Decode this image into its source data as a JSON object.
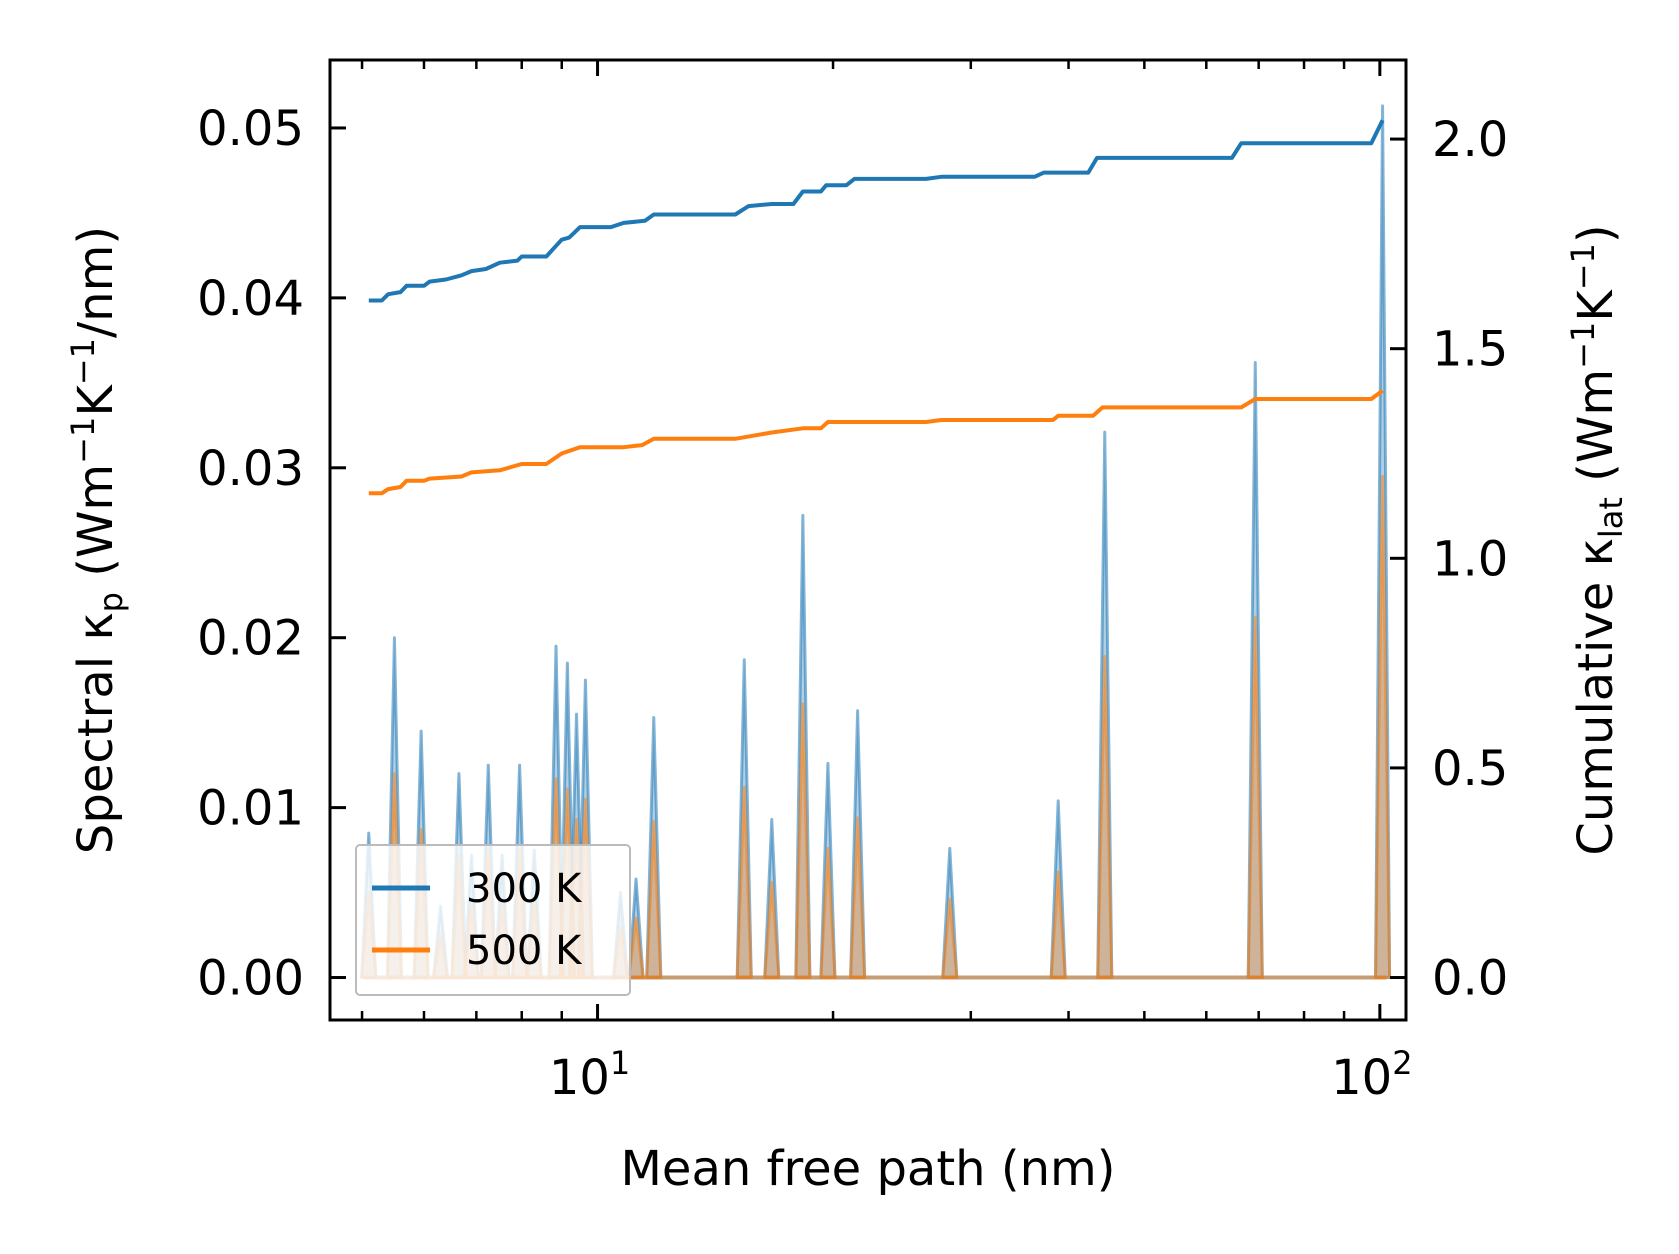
{
  "chart_data": {
    "type": "line",
    "title": "",
    "xlabel": "Mean free path (nm)",
    "ylabel_left": {
      "main": "Spectral κ",
      "sub": "p",
      "units_open": " (Wm",
      "sup1": "−1",
      "mid": "K",
      "sup2": "−1",
      "tail": "/nm)"
    },
    "ylabel_right": {
      "main": "Cumulative κ",
      "sub": "lat",
      "units_open": " (Wm",
      "sup1": "−1",
      "mid": "K",
      "sup2": "−1",
      "tail": ")"
    },
    "xscale": "log",
    "xlim": [
      4.55,
      108
    ],
    "ylim_left": [
      -0.0025,
      0.054
    ],
    "ylim_right": [
      -0.1013,
      2.1886
    ],
    "xticks_major": [
      {
        "value": 10,
        "base": "10",
        "exp": "1"
      },
      {
        "value": 100,
        "base": "10",
        "exp": "2"
      }
    ],
    "yticks_left": [
      "0.00",
      "0.01",
      "0.02",
      "0.03",
      "0.04",
      "0.05"
    ],
    "yticks_right": [
      "0.0",
      "0.5",
      "1.0",
      "1.5",
      "2.0"
    ],
    "legend": {
      "position": "lower-left",
      "entries": [
        "300 K",
        "500 K"
      ]
    },
    "colors": {
      "300 K": "#1f77b4",
      "500 K": "#ff7f0e"
    },
    "spectral_series": [
      {
        "name": "300 K",
        "peaks": [
          [
            5.1,
            0.0085
          ],
          [
            5.5,
            0.02
          ],
          [
            5.95,
            0.0145
          ],
          [
            6.3,
            0.0042
          ],
          [
            6.65,
            0.012
          ],
          [
            6.9,
            0.0072
          ],
          [
            7.25,
            0.0125
          ],
          [
            7.55,
            0.0072
          ],
          [
            7.95,
            0.0125
          ],
          [
            8.3,
            0.0075
          ],
          [
            8.85,
            0.0195
          ],
          [
            9.15,
            0.0185
          ],
          [
            9.4,
            0.0155
          ],
          [
            9.65,
            0.0175
          ],
          [
            10.7,
            0.005
          ],
          [
            11.2,
            0.0058
          ],
          [
            11.8,
            0.0153
          ],
          [
            15.4,
            0.0187
          ],
          [
            16.7,
            0.0093
          ],
          [
            18.3,
            0.0272
          ],
          [
            19.7,
            0.0126
          ],
          [
            21.5,
            0.0157
          ],
          [
            28.2,
            0.0076
          ],
          [
            38.8,
            0.0104
          ],
          [
            44.5,
            0.0321
          ],
          [
            69.3,
            0.0362
          ],
          [
            100.8,
            0.0513
          ]
        ]
      },
      {
        "name": "500 K",
        "peaks": [
          [
            5.1,
            0.005
          ],
          [
            5.5,
            0.012
          ],
          [
            5.95,
            0.0087
          ],
          [
            6.3,
            0.0025
          ],
          [
            6.65,
            0.0072
          ],
          [
            6.9,
            0.0043
          ],
          [
            7.25,
            0.0075
          ],
          [
            7.55,
            0.0043
          ],
          [
            7.95,
            0.0075
          ],
          [
            8.3,
            0.0045
          ],
          [
            8.85,
            0.0117
          ],
          [
            9.15,
            0.0111
          ],
          [
            9.4,
            0.0093
          ],
          [
            9.65,
            0.0105
          ],
          [
            10.7,
            0.003
          ],
          [
            11.2,
            0.0035
          ],
          [
            11.8,
            0.0092
          ],
          [
            15.4,
            0.0112
          ],
          [
            16.7,
            0.0056
          ],
          [
            18.3,
            0.0161
          ],
          [
            19.7,
            0.0076
          ],
          [
            21.5,
            0.0094
          ],
          [
            28.2,
            0.0046
          ],
          [
            38.8,
            0.0062
          ],
          [
            44.5,
            0.0189
          ],
          [
            69.3,
            0.0212
          ],
          [
            100.8,
            0.0295
          ]
        ]
      }
    ],
    "cumulative_series": [
      {
        "name": "300 K",
        "points": [
          [
            5.1,
            1.615
          ],
          [
            5.3,
            1.615
          ],
          [
            5.4,
            1.63
          ],
          [
            5.6,
            1.635
          ],
          [
            5.7,
            1.65
          ],
          [
            6.0,
            1.65
          ],
          [
            6.1,
            1.66
          ],
          [
            6.4,
            1.665
          ],
          [
            6.7,
            1.675
          ],
          [
            6.9,
            1.685
          ],
          [
            7.2,
            1.69
          ],
          [
            7.5,
            1.705
          ],
          [
            7.9,
            1.71
          ],
          [
            8.0,
            1.72
          ],
          [
            8.6,
            1.72
          ],
          [
            9.0,
            1.76
          ],
          [
            9.2,
            1.765
          ],
          [
            9.5,
            1.79
          ],
          [
            10.4,
            1.79
          ],
          [
            10.8,
            1.8
          ],
          [
            11.5,
            1.805
          ],
          [
            11.8,
            1.82
          ],
          [
            15.0,
            1.82
          ],
          [
            15.6,
            1.84
          ],
          [
            16.7,
            1.845
          ],
          [
            17.8,
            1.845
          ],
          [
            18.3,
            1.875
          ],
          [
            19.3,
            1.875
          ],
          [
            19.6,
            1.89
          ],
          [
            20.8,
            1.89
          ],
          [
            21.3,
            1.905
          ],
          [
            26.3,
            1.905
          ],
          [
            27.5,
            1.91
          ],
          [
            36.2,
            1.91
          ],
          [
            37.2,
            1.92
          ],
          [
            42.4,
            1.92
          ],
          [
            43.5,
            1.955
          ],
          [
            64.7,
            1.955
          ],
          [
            66.5,
            1.99
          ],
          [
            97.5,
            1.99
          ],
          [
            100.8,
            2.045
          ]
        ]
      },
      {
        "name": "500 K",
        "points": [
          [
            5.1,
            1.155
          ],
          [
            5.3,
            1.155
          ],
          [
            5.4,
            1.165
          ],
          [
            5.6,
            1.17
          ],
          [
            5.7,
            1.185
          ],
          [
            6.0,
            1.185
          ],
          [
            6.1,
            1.19
          ],
          [
            6.7,
            1.195
          ],
          [
            6.9,
            1.205
          ],
          [
            7.5,
            1.21
          ],
          [
            8.0,
            1.225
          ],
          [
            8.6,
            1.225
          ],
          [
            9.0,
            1.25
          ],
          [
            9.5,
            1.265
          ],
          [
            10.8,
            1.265
          ],
          [
            11.4,
            1.27
          ],
          [
            11.8,
            1.285
          ],
          [
            15.0,
            1.285
          ],
          [
            16.7,
            1.3
          ],
          [
            18.3,
            1.31
          ],
          [
            19.3,
            1.31
          ],
          [
            19.7,
            1.325
          ],
          [
            26.3,
            1.325
          ],
          [
            27.5,
            1.33
          ],
          [
            38.2,
            1.33
          ],
          [
            38.8,
            1.34
          ],
          [
            43.0,
            1.34
          ],
          [
            44.2,
            1.36
          ],
          [
            66.5,
            1.36
          ],
          [
            69.3,
            1.38
          ],
          [
            97.5,
            1.38
          ],
          [
            100.8,
            1.4
          ]
        ]
      }
    ]
  }
}
